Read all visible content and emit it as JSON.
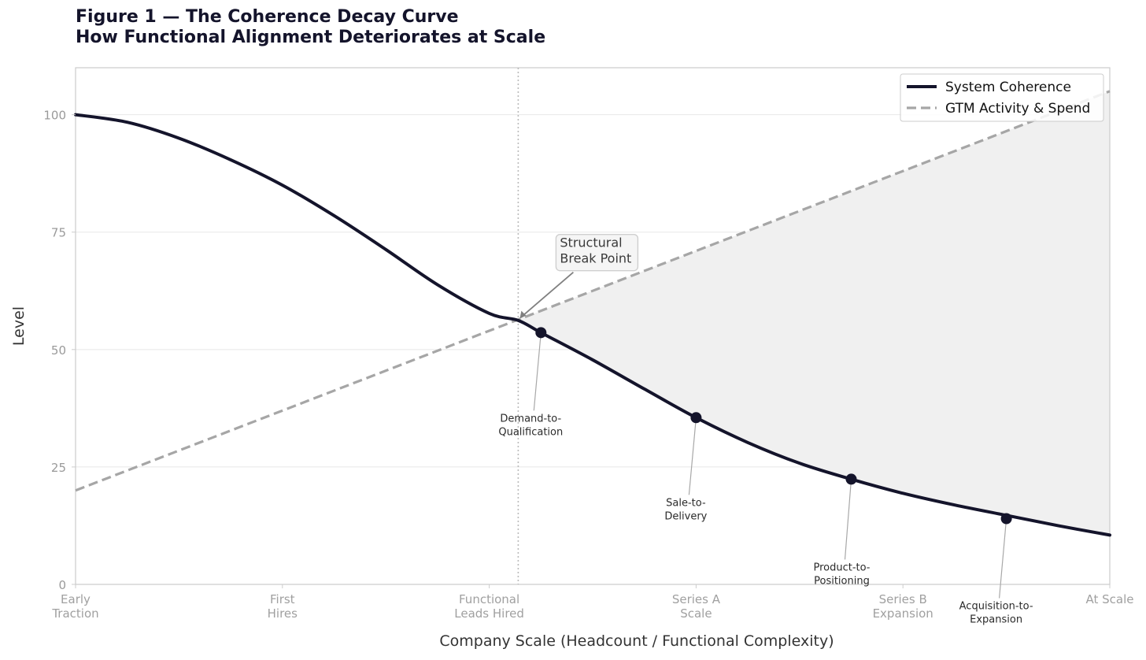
{
  "title": {
    "line1": "Figure 1 — The Coherence Decay Curve",
    "line2": "How Functional Alignment Deteriorates at Scale"
  },
  "colors": {
    "coherence": "#14142b",
    "gtm": "#a6a6a6",
    "gap_fill": "#f0f0f0",
    "grid": "#e8e8e8",
    "axis_frame": "#cccccc",
    "break_line": "#bbbbbb",
    "callout_arrow": "#808080",
    "leader_line": "#a8a8a8"
  },
  "chart_data": {
    "type": "line",
    "xlabel": "Company Scale  (Headcount / Functional Complexity)",
    "ylabel": "Level",
    "xlim": [
      0,
      5
    ],
    "ylim": [
      0,
      110
    ],
    "grid": "horizontal",
    "legend_position": "top-right",
    "x_ticks": [
      {
        "x": 0,
        "label": [
          "Early",
          "Traction"
        ]
      },
      {
        "x": 1,
        "label": [
          "First",
          "Hires"
        ]
      },
      {
        "x": 2,
        "label": [
          "Functional",
          "Leads Hired"
        ]
      },
      {
        "x": 3,
        "label": [
          "Series A",
          "Scale"
        ]
      },
      {
        "x": 4,
        "label": [
          "Series B",
          "Expansion"
        ]
      },
      {
        "x": 5,
        "label": [
          "At Scale"
        ]
      }
    ],
    "y_ticks": [
      0,
      25,
      50,
      75,
      100
    ],
    "series": [
      {
        "name": "System Coherence",
        "style": "solid",
        "points": [
          [
            0,
            100
          ],
          [
            0.25,
            98.4
          ],
          [
            0.5,
            95.0
          ],
          [
            0.75,
            90.4
          ],
          [
            1.0,
            85.0
          ],
          [
            1.25,
            78.5
          ],
          [
            1.5,
            71.3
          ],
          [
            1.75,
            63.8
          ],
          [
            2.0,
            57.7
          ],
          [
            2.14,
            56.2
          ],
          [
            2.25,
            53.6
          ],
          [
            2.5,
            47.8
          ],
          [
            2.75,
            41.6
          ],
          [
            3.0,
            35.5
          ],
          [
            3.25,
            30.2
          ],
          [
            3.5,
            25.8
          ],
          [
            3.75,
            22.4
          ],
          [
            4.0,
            19.4
          ],
          [
            4.25,
            16.9
          ],
          [
            4.5,
            14.7
          ],
          [
            4.75,
            12.5
          ],
          [
            5.0,
            10.5
          ]
        ]
      },
      {
        "name": "GTM Activity & Spend",
        "style": "dashed",
        "points": [
          [
            0,
            20
          ],
          [
            5,
            105
          ]
        ]
      }
    ],
    "shaded_gap": {
      "from_x": 2.14,
      "to_x": 5.0,
      "between": [
        "GTM Activity & Spend",
        "System Coherence"
      ]
    },
    "break_point": {
      "x": 2.14,
      "y": 56.4,
      "label": [
        "Structural",
        "Break Point"
      ]
    },
    "annotations": [
      {
        "x": 2.25,
        "y": 53.6,
        "label": [
          "Demand-to-",
          "Qualification"
        ]
      },
      {
        "x": 3.0,
        "y": 35.5,
        "label": [
          "Sale-to-",
          "Delivery"
        ]
      },
      {
        "x": 3.75,
        "y": 22.4,
        "label": [
          "Product-to-",
          "Positioning"
        ]
      },
      {
        "x": 4.5,
        "y": 14.0,
        "label": [
          "Acquisition-to-",
          "Expansion"
        ]
      }
    ]
  }
}
